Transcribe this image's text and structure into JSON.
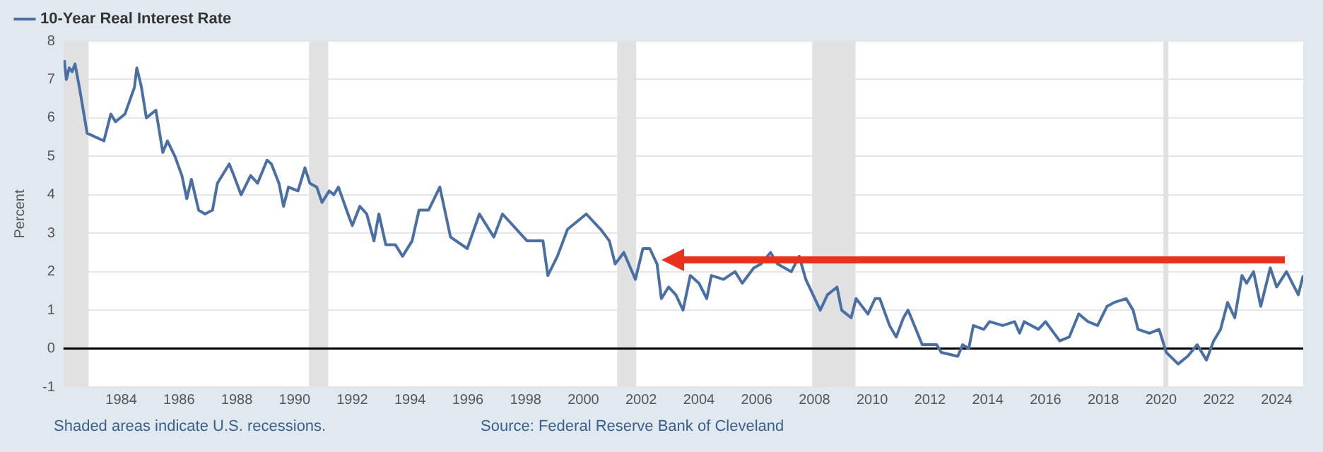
{
  "chart_data": {
    "type": "line",
    "ylabel": "Percent",
    "x": [
      1982.03,
      1982.1,
      1982.2,
      1982.3,
      1982.4,
      1982.55,
      1982.82,
      1983.4,
      1983.64,
      1983.8,
      1984.13,
      1984.46,
      1984.54,
      1984.7,
      1984.87,
      1985.2,
      1985.44,
      1985.6,
      1985.86,
      1986.1,
      1986.27,
      1986.43,
      1986.68,
      1986.9,
      1987.16,
      1987.33,
      1987.74,
      1987.9,
      1988.15,
      1988.48,
      1988.72,
      1989.05,
      1989.2,
      1989.46,
      1989.62,
      1989.79,
      1990.12,
      1990.36,
      1990.53,
      1990.77,
      1990.95,
      1991.2,
      1991.36,
      1991.52,
      1991.85,
      1992.0,
      1992.26,
      1992.5,
      1992.75,
      1992.92,
      1993.16,
      1993.49,
      1993.74,
      1994.07,
      1994.31,
      1994.64,
      1995.03,
      1995.4,
      1995.98,
      1996.4,
      1996.9,
      1997.2,
      1998.05,
      1998.6,
      1998.77,
      1999.1,
      1999.45,
      2000.1,
      2000.6,
      2000.9,
      2001.1,
      2001.4,
      2001.8,
      2002.06,
      2002.3,
      2002.55,
      2002.7,
      2002.95,
      2003.2,
      2003.45,
      2003.7,
      2004.0,
      2004.27,
      2004.43,
      2004.85,
      2005.25,
      2005.5,
      2005.9,
      2006.15,
      2006.48,
      2006.72,
      2007.2,
      2007.47,
      2007.7,
      2007.95,
      2008.2,
      2008.45,
      2008.78,
      2008.94,
      2009.27,
      2009.44,
      2009.85,
      2010.1,
      2010.26,
      2010.6,
      2010.83,
      2011.08,
      2011.24,
      2011.73,
      2012.23,
      2012.39,
      2012.96,
      2013.13,
      2013.34,
      2013.5,
      2013.86,
      2014.06,
      2014.52,
      2014.93,
      2015.1,
      2015.26,
      2015.75,
      2016.0,
      2016.49,
      2016.82,
      2017.15,
      2017.47,
      2017.8,
      2018.13,
      2018.38,
      2018.79,
      2019.03,
      2019.2,
      2019.6,
      2019.93,
      2020.18,
      2020.59,
      2020.92,
      2021.25,
      2021.57,
      2021.82,
      2022.06,
      2022.3,
      2022.55,
      2022.8,
      2022.96,
      2023.2,
      2023.45,
      2023.78,
      2024.0,
      2024.34,
      2024.75,
      2024.92
    ],
    "series": [
      {
        "name": "10-Year Real Interest Rate",
        "color": "#4a6fa5",
        "values": [
          7.5,
          7.0,
          7.3,
          7.2,
          7.4,
          6.8,
          5.6,
          5.4,
          6.1,
          5.9,
          6.1,
          6.8,
          7.3,
          6.8,
          6.0,
          6.2,
          5.1,
          5.4,
          5.0,
          4.5,
          3.9,
          4.4,
          3.6,
          3.5,
          3.6,
          4.3,
          4.8,
          4.5,
          4.0,
          4.5,
          4.3,
          4.9,
          4.8,
          4.3,
          3.7,
          4.2,
          4.1,
          4.7,
          4.3,
          4.2,
          3.8,
          4.1,
          4.0,
          4.2,
          3.5,
          3.2,
          3.7,
          3.5,
          2.8,
          3.5,
          2.7,
          2.7,
          2.4,
          2.8,
          3.6,
          3.6,
          4.2,
          2.9,
          2.6,
          3.5,
          2.9,
          3.5,
          2.8,
          2.8,
          1.9,
          2.4,
          3.1,
          3.5,
          3.1,
          2.8,
          2.2,
          2.5,
          1.8,
          2.6,
          2.6,
          2.2,
          1.3,
          1.6,
          1.4,
          1.0,
          1.9,
          1.7,
          1.3,
          1.9,
          1.8,
          2.0,
          1.7,
          2.1,
          2.2,
          2.5,
          2.2,
          2.0,
          2.4,
          1.8,
          1.4,
          1.0,
          1.4,
          1.6,
          1.0,
          0.8,
          1.3,
          0.9,
          1.3,
          1.3,
          0.6,
          0.3,
          0.8,
          1.0,
          0.1,
          0.1,
          -0.1,
          -0.2,
          0.1,
          0.0,
          0.6,
          0.5,
          0.7,
          0.6,
          0.7,
          0.4,
          0.7,
          0.5,
          0.7,
          0.2,
          0.3,
          0.9,
          0.7,
          0.6,
          1.1,
          1.2,
          1.3,
          1.0,
          0.5,
          0.4,
          0.5,
          -0.1,
          -0.4,
          -0.2,
          0.1,
          -0.3,
          0.2,
          0.5,
          1.2,
          0.8,
          1.9,
          1.7,
          2.0,
          1.1,
          2.1,
          1.6,
          2.0,
          1.4,
          1.9
        ]
      }
    ],
    "xlim": [
      1982.0,
      2024.92
    ],
    "xticks": [
      1984,
      1986,
      1988,
      1990,
      1992,
      1994,
      1996,
      1998,
      2000,
      2002,
      2004,
      2006,
      2008,
      2010,
      2012,
      2014,
      2016,
      2018,
      2020,
      2022,
      2024
    ],
    "ylim": [
      -1,
      8
    ],
    "yticks": [
      -1,
      0,
      1,
      2,
      3,
      4,
      5,
      6,
      7,
      8
    ],
    "grid": "y",
    "legend": "top left",
    "marker": "none",
    "line_style": "solid",
    "ref_lines": [
      {
        "axis": "y",
        "value": 0,
        "color": "#000000"
      }
    ],
    "bands": [
      {
        "axis": "x",
        "from": 1982.0,
        "to": 1982.87,
        "color": "#e1e1e1"
      },
      {
        "axis": "x",
        "from": 1990.5,
        "to": 1991.17,
        "color": "#e1e1e1"
      },
      {
        "axis": "x",
        "from": 2001.17,
        "to": 2001.83,
        "color": "#e1e1e1"
      },
      {
        "axis": "x",
        "from": 2007.92,
        "to": 2009.42,
        "color": "#e1e1e1"
      },
      {
        "axis": "x",
        "from": 2020.08,
        "to": 2020.25,
        "color": "#e1e1e1"
      }
    ],
    "annotations": [
      "Shaded areas indicate U.S. recessions.",
      "Source: Federal Reserve Bank of Cleveland"
    ]
  }
}
